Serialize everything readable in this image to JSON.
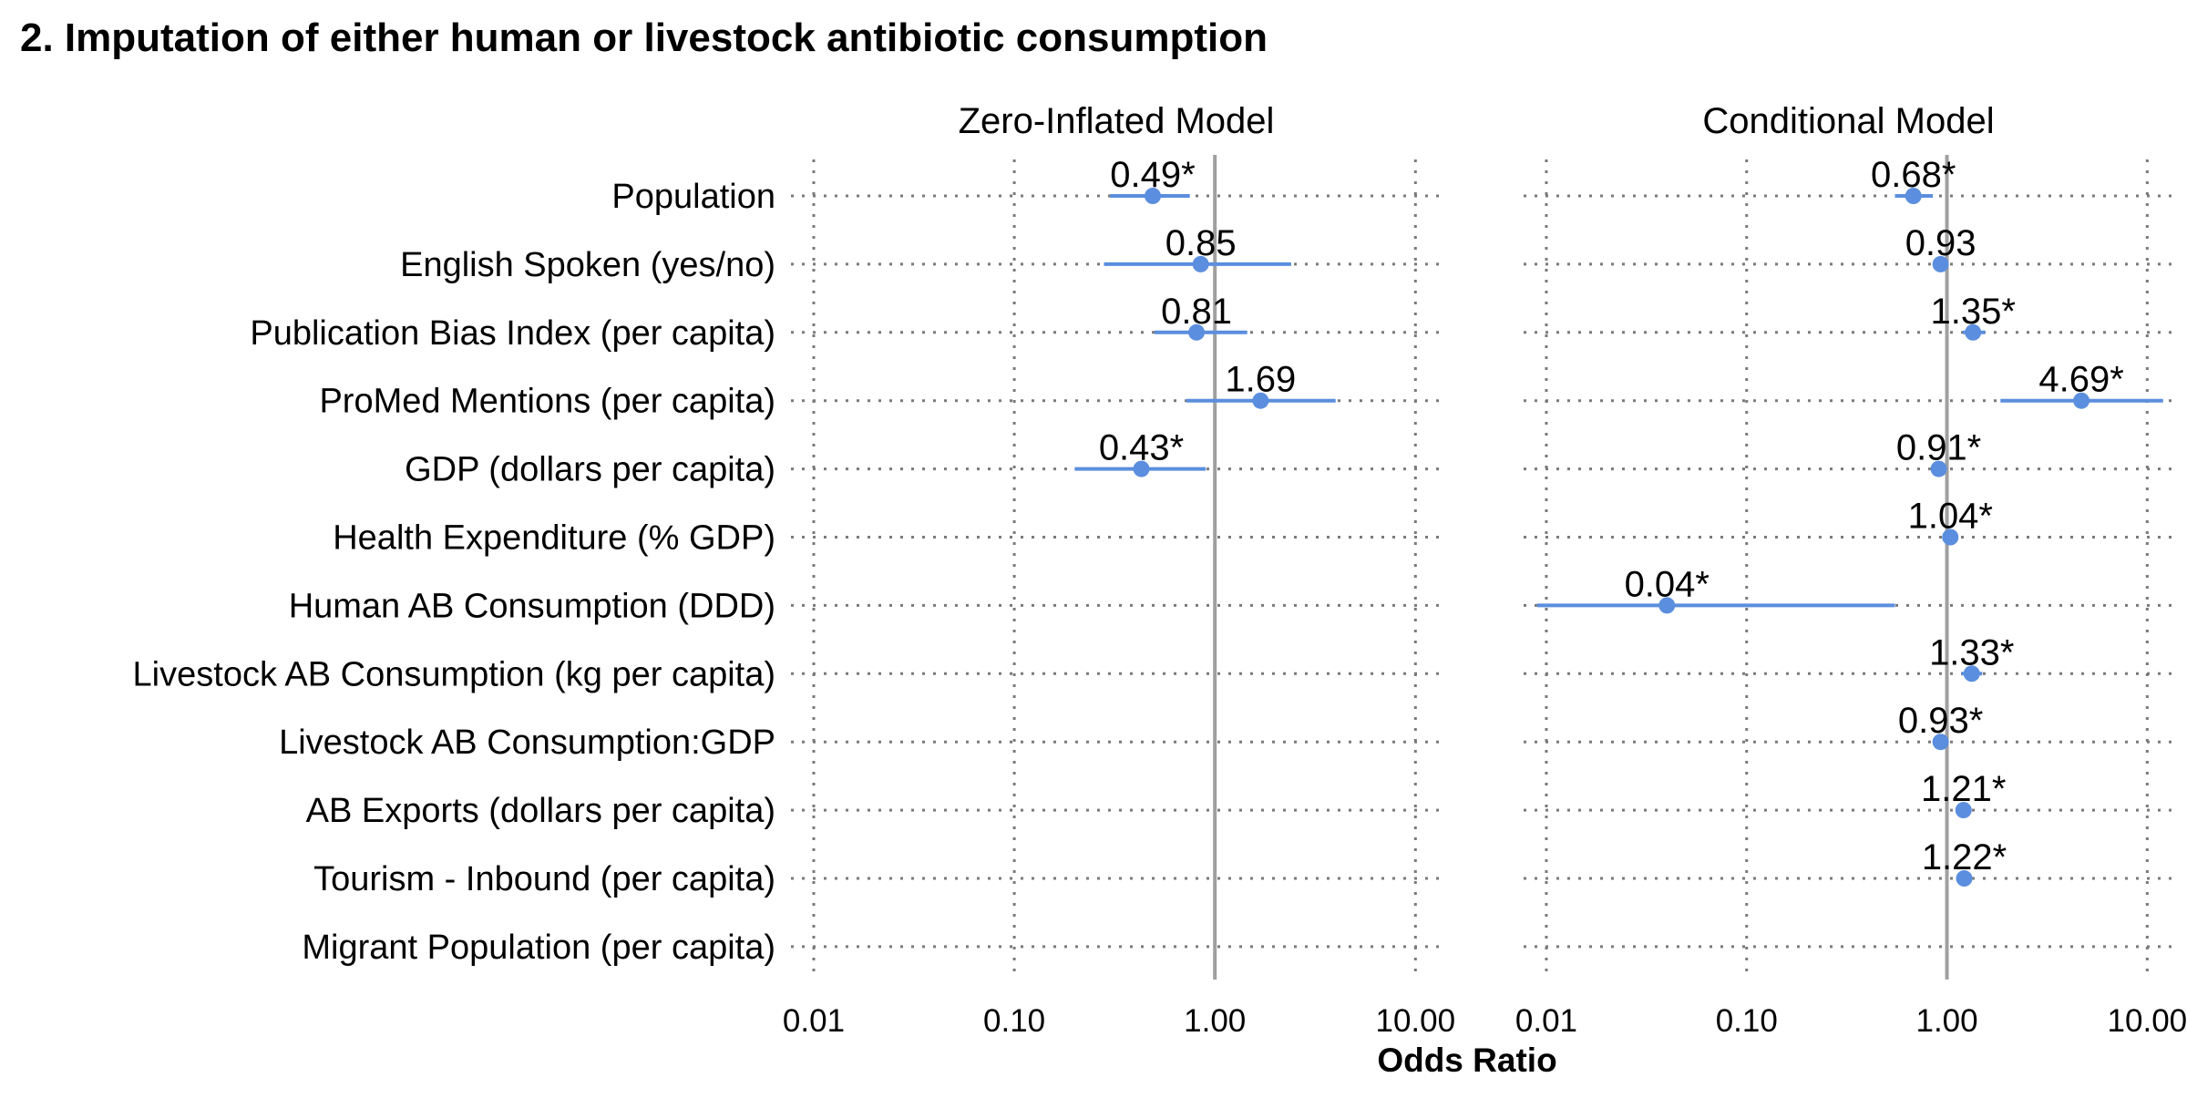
{
  "chart_data": {
    "type": "scatter",
    "title": "2. Imputation of either human or livestock antibiotic consumption",
    "xlabel": "Odds Ratio",
    "xscale": "log",
    "xlim": [
      0.0077,
      13.5
    ],
    "xticks": [
      0.01,
      0.1,
      1,
      10
    ],
    "xtick_labels": [
      "0.01",
      "0.10",
      "1.00",
      "10.00"
    ],
    "reference_line": 1,
    "grid": "dotted",
    "point_color": "#5b8ede",
    "terms": [
      "Population",
      "English Spoken (yes/no)",
      "Publication Bias Index (per capita)",
      "ProMed Mentions (per capita)",
      "GDP (dollars per capita)",
      "Health Expenditure (% GDP)",
      "Human AB Consumption (DDD)",
      "Livestock AB Consumption (kg per capita)",
      "Livestock AB Consumption:GDP",
      "AB Exports (dollars per capita)",
      "Tourism - Inbound (per capita)",
      "Migrant Population (per capita)"
    ],
    "panels": [
      {
        "name": "Zero-Inflated Model",
        "estimates": [
          {
            "term": "Population",
            "or": 0.49,
            "low": 0.3,
            "high": 0.75,
            "label": "0.49*"
          },
          {
            "term": "English Spoken (yes/no)",
            "or": 0.85,
            "low": 0.28,
            "high": 2.4,
            "label": "0.85"
          },
          {
            "term": "Publication Bias Index (per capita)",
            "or": 0.81,
            "low": 0.5,
            "high": 1.45,
            "label": "0.81"
          },
          {
            "term": "ProMed Mentions (per capita)",
            "or": 1.69,
            "low": 0.72,
            "high": 4.0,
            "label": "1.69"
          },
          {
            "term": "GDP (dollars per capita)",
            "or": 0.43,
            "low": 0.2,
            "high": 0.9,
            "label": "0.43*"
          }
        ]
      },
      {
        "name": "Conditional Model",
        "estimates": [
          {
            "term": "Population",
            "or": 0.68,
            "low": 0.55,
            "high": 0.85,
            "label": "0.68*"
          },
          {
            "term": "English Spoken (yes/no)",
            "or": 0.93,
            "low": 0.85,
            "high": 1.02,
            "label": "0.93"
          },
          {
            "term": "Publication Bias Index (per capita)",
            "or": 1.35,
            "low": 1.2,
            "high": 1.55,
            "label": "1.35*"
          },
          {
            "term": "ProMed Mentions (per capita)",
            "or": 4.69,
            "low": 1.85,
            "high": 12.0,
            "label": "4.69*"
          },
          {
            "term": "GDP (dollars per capita)",
            "or": 0.91,
            "low": 0.85,
            "high": 0.97,
            "label": "0.91*"
          },
          {
            "term": "Health Expenditure (% GDP)",
            "or": 1.04,
            "low": 1.02,
            "high": 1.06,
            "label": "1.04*"
          },
          {
            "term": "Human AB Consumption (DDD)",
            "or": 0.04,
            "low": 0.009,
            "high": 0.55,
            "label": "0.04*"
          },
          {
            "term": "Livestock AB Consumption (kg per capita)",
            "or": 1.33,
            "low": 1.18,
            "high": 1.5,
            "label": "1.33*"
          },
          {
            "term": "Livestock AB Consumption:GDP",
            "or": 0.93,
            "low": 0.9,
            "high": 0.96,
            "label": "0.93*"
          },
          {
            "term": "AB Exports (dollars per capita)",
            "or": 1.21,
            "low": 1.12,
            "high": 1.3,
            "label": "1.21*"
          },
          {
            "term": "Tourism - Inbound (per capita)",
            "or": 1.22,
            "low": 1.13,
            "high": 1.32,
            "label": "1.22*"
          }
        ]
      }
    ]
  }
}
